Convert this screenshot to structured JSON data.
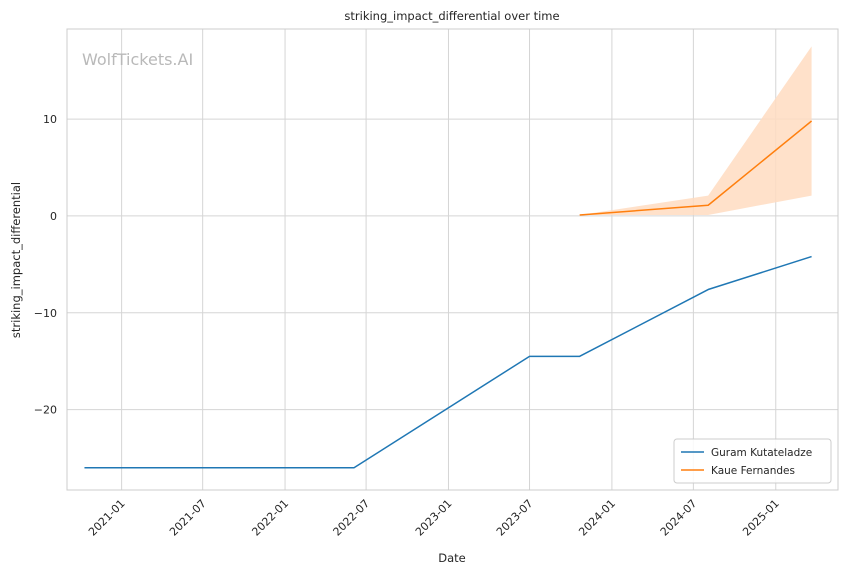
{
  "chart_data": {
    "type": "line",
    "title": "striking_impact_differential over time",
    "xlabel": "Date",
    "ylabel": "striking_impact_differential",
    "watermark": "WolfTickets.AI",
    "grid": true,
    "legend_position": "lower-right",
    "xlim": [
      "2020-09-01",
      "2025-05-20"
    ],
    "ylim": [
      -28.3,
      19.3
    ],
    "x_ticks": [
      "2021-01",
      "2021-07",
      "2022-01",
      "2022-07",
      "2023-01",
      "2023-07",
      "2024-01",
      "2024-07",
      "2025-01"
    ],
    "y_ticks": [
      10,
      0,
      -10,
      -20
    ],
    "y_tick_labels": [
      "10",
      "0",
      "−10",
      "−20"
    ],
    "series": [
      {
        "name": "Guram Kutateladze",
        "color": "#1f77b4",
        "x": [
          "2020-10-10",
          "2022-06-04",
          "2023-07-01",
          "2023-10-21",
          "2024-08-03",
          "2025-03-22"
        ],
        "y": [
          -26,
          -26,
          -14.5,
          -14.5,
          -7.6,
          -4.2
        ]
      },
      {
        "name": "Kaue Fernandes",
        "color": "#ff7f0e",
        "band_color": "#ffdcc1",
        "x": [
          "2023-10-21",
          "2024-08-03",
          "2025-03-22"
        ],
        "y": [
          0.1,
          1.1,
          9.8
        ],
        "band_lower": [
          0.1,
          0.1,
          2.1
        ],
        "band_upper": [
          0.1,
          2.1,
          17.5
        ]
      }
    ]
  }
}
